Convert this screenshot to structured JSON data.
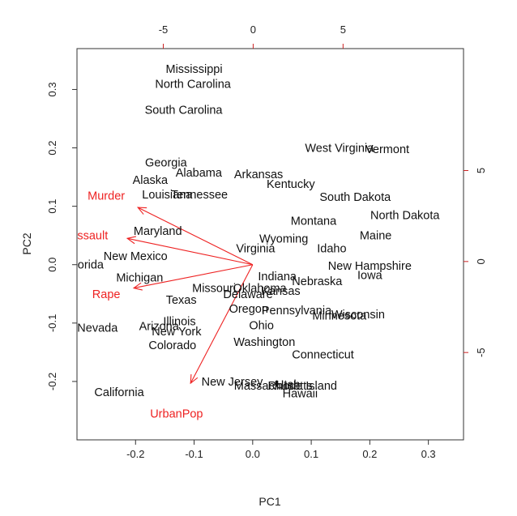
{
  "chart_data": {
    "type": "scatter",
    "subtype": "biplot",
    "title": "",
    "xlabel": "PC1",
    "ylabel": "PC2",
    "xlim": [
      -0.3,
      0.36
    ],
    "ylim": [
      -0.3,
      0.37
    ],
    "x_ticks": [
      "-0.2",
      "-0.1",
      "0.0",
      "0.1",
      "0.2",
      "0.3"
    ],
    "x_tick_values": [
      -0.2,
      -0.1,
      0.0,
      0.1,
      0.2,
      0.3
    ],
    "y_ticks": [
      "-0.2",
      "-0.1",
      "0.0",
      "0.1",
      "0.2",
      "0.3"
    ],
    "y_tick_values": [
      -0.2,
      -0.1,
      0.0,
      0.1,
      0.2,
      0.3
    ],
    "top_ticks": [
      "-5",
      "0",
      "5"
    ],
    "top_tick_values": [
      -5,
      0,
      5
    ],
    "right_ticks": [
      "-5",
      "0",
      "5"
    ],
    "right_tick_values": [
      -5,
      0,
      5
    ],
    "secondary_scale": [
      -9.8,
      11.7
    ],
    "grid": false,
    "point_color": "#111111",
    "arrow_color": "#ee2222",
    "points": [
      {
        "label": "Mississippi",
        "x": -0.1,
        "y": 0.335
      },
      {
        "label": "North Carolina",
        "x": -0.102,
        "y": 0.31
      },
      {
        "label": "South Carolina",
        "x": -0.118,
        "y": 0.265
      },
      {
        "label": "Georgia",
        "x": -0.148,
        "y": 0.175
      },
      {
        "label": "Alabama",
        "x": -0.092,
        "y": 0.158
      },
      {
        "label": "Arkansas",
        "x": 0.01,
        "y": 0.155
      },
      {
        "label": "Alaska",
        "x": -0.175,
        "y": 0.145
      },
      {
        "label": "Kentucky",
        "x": 0.065,
        "y": 0.138
      },
      {
        "label": "Louisiana",
        "x": -0.146,
        "y": 0.12
      },
      {
        "label": "Tennessee",
        "x": -0.091,
        "y": 0.12
      },
      {
        "label": "West Virginia",
        "x": 0.148,
        "y": 0.2
      },
      {
        "label": "Vermont",
        "x": 0.23,
        "y": 0.198
      },
      {
        "label": "South Dakota",
        "x": 0.175,
        "y": 0.116
      },
      {
        "label": "North Dakota",
        "x": 0.26,
        "y": 0.085
      },
      {
        "label": "Montana",
        "x": 0.104,
        "y": 0.075
      },
      {
        "label": "Maine",
        "x": 0.21,
        "y": 0.05
      },
      {
        "label": "Maryland",
        "x": -0.162,
        "y": 0.058
      },
      {
        "label": "Wyoming",
        "x": 0.053,
        "y": 0.045
      },
      {
        "label": "Idaho",
        "x": 0.135,
        "y": 0.028
      },
      {
        "label": "Virginia",
        "x": 0.005,
        "y": 0.028
      },
      {
        "label": "New Mexico",
        "x": -0.2,
        "y": 0.015
      },
      {
        "label": "Florida",
        "x": -0.285,
        "y": 0.0
      },
      {
        "label": "New Hampshire",
        "x": 0.2,
        "y": -0.002
      },
      {
        "label": "Iowa",
        "x": 0.2,
        "y": -0.018
      },
      {
        "label": "Michigan",
        "x": -0.193,
        "y": -0.022
      },
      {
        "label": "Indiana",
        "x": 0.042,
        "y": -0.02
      },
      {
        "label": "Nebraska",
        "x": 0.11,
        "y": -0.028
      },
      {
        "label": "Missouri",
        "x": -0.066,
        "y": -0.04
      },
      {
        "label": "Oklahoma",
        "x": 0.012,
        "y": -0.04
      },
      {
        "label": "Kansas",
        "x": 0.048,
        "y": -0.045
      },
      {
        "label": "Delaware",
        "x": -0.008,
        "y": -0.05
      },
      {
        "label": "Texas",
        "x": -0.122,
        "y": -0.06
      },
      {
        "label": "Oregon",
        "x": -0.007,
        "y": -0.075
      },
      {
        "label": "Pennsylvania",
        "x": 0.075,
        "y": -0.078
      },
      {
        "label": "Minnesota",
        "x": 0.148,
        "y": -0.087
      },
      {
        "label": "Wisconsin",
        "x": 0.18,
        "y": -0.085
      },
      {
        "label": "Illinois",
        "x": -0.125,
        "y": -0.097
      },
      {
        "label": "Ohio",
        "x": 0.015,
        "y": -0.104
      },
      {
        "label": "Arizona",
        "x": -0.16,
        "y": -0.105
      },
      {
        "label": "Nevada",
        "x": -0.265,
        "y": -0.108
      },
      {
        "label": "New York",
        "x": -0.13,
        "y": -0.114
      },
      {
        "label": "Washington",
        "x": 0.02,
        "y": -0.132
      },
      {
        "label": "Colorado",
        "x": -0.137,
        "y": -0.138
      },
      {
        "label": "Connecticut",
        "x": 0.12,
        "y": -0.154
      },
      {
        "label": "New Jersey",
        "x": -0.035,
        "y": -0.2
      },
      {
        "label": "Massachusetts",
        "x": 0.035,
        "y": -0.207
      },
      {
        "label": "Utah",
        "x": 0.06,
        "y": -0.205
      },
      {
        "label": "Rhode Island",
        "x": 0.085,
        "y": -0.207
      },
      {
        "label": "Hawaii",
        "x": 0.081,
        "y": -0.22
      },
      {
        "label": "California",
        "x": -0.228,
        "y": -0.218
      }
    ],
    "loadings": [
      {
        "label": "Murder",
        "x": -0.196,
        "y": 0.098,
        "label_x": -0.25,
        "label_y": 0.118
      },
      {
        "label": "Assault",
        "x": -0.214,
        "y": 0.045,
        "label_x": -0.28,
        "label_y": 0.05
      },
      {
        "label": "Rape",
        "x": -0.203,
        "y": -0.04,
        "label_x": -0.25,
        "label_y": -0.05
      },
      {
        "label": "UrbanPop",
        "x": -0.106,
        "y": -0.203,
        "label_x": -0.13,
        "label_y": -0.255
      }
    ]
  }
}
